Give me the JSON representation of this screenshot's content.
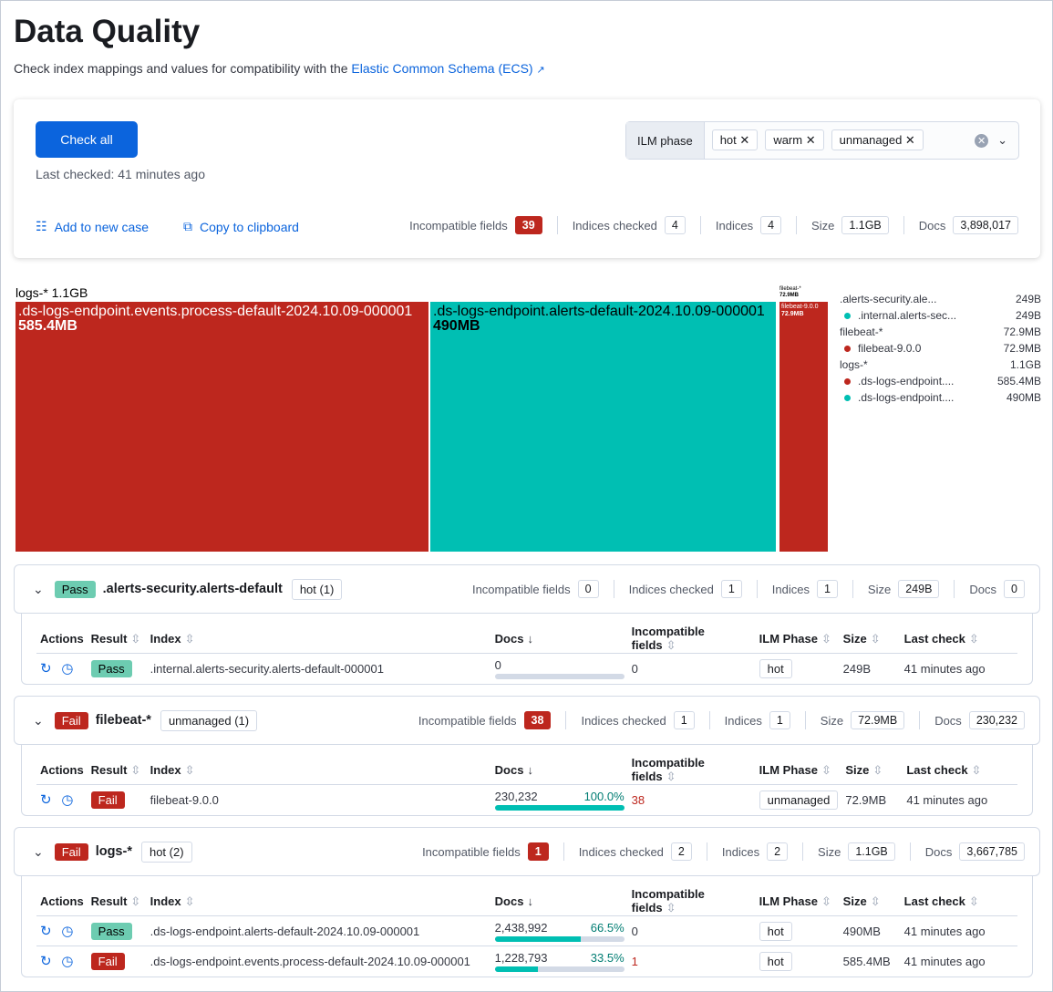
{
  "header": {
    "title": "Data Quality",
    "subtitle": "Check index mappings and values for compatibility with the",
    "link": "Elastic Common Schema (ECS)"
  },
  "panel": {
    "check_all": "Check all",
    "last_checked": "Last checked: 41 minutes ago",
    "add_case": "Add to new case",
    "copy": "Copy to clipboard",
    "ilm_label": "ILM phase",
    "ilm_chips": [
      "hot",
      "warm",
      "unmanaged"
    ],
    "stats": [
      {
        "label": "Incompatible fields",
        "value": "39",
        "alert": true
      },
      {
        "label": "Indices checked",
        "value": "4"
      },
      {
        "label": "Indices",
        "value": "4"
      },
      {
        "label": "Size",
        "value": "1.1GB"
      },
      {
        "label": "Docs",
        "value": "3,898,017"
      }
    ]
  },
  "colors": {
    "fail": "#bd271e",
    "pass": "#00bfb3",
    "link": "#0b64dd"
  },
  "treemap": {
    "title": "logs-* 1.1GB",
    "small_label": "filebeat-*",
    "small_size": "72.9MB",
    "rects": [
      {
        "name": ".ds-logs-endpoint.events.process-default-2024.10.09-000001",
        "size": "585.4MB",
        "color": "#bd271e"
      },
      {
        "name": ".ds-logs-endpoint.alerts-default-2024.10.09-000001",
        "size": "490MB",
        "color": "#00bfb3"
      },
      {
        "name": "filebeat-9.0.0",
        "size": "72.9MB",
        "color": "#bd271e"
      }
    ],
    "legend": [
      {
        "label": ".alerts-security.ale...",
        "value": "249B"
      },
      {
        "label": ".internal.alerts-sec...",
        "value": "249B",
        "color": "#00bfb3"
      },
      {
        "label": "filebeat-*",
        "value": "72.9MB"
      },
      {
        "label": "filebeat-9.0.0",
        "value": "72.9MB",
        "color": "#bd271e"
      },
      {
        "label": "logs-*",
        "value": "1.1GB"
      },
      {
        "label": ".ds-logs-endpoint....",
        "value": "585.4MB",
        "color": "#bd271e"
      },
      {
        "label": ".ds-logs-endpoint....",
        "value": "490MB",
        "color": "#00bfb3"
      }
    ]
  },
  "columns": [
    "Actions",
    "Result",
    "Index",
    "Docs",
    "Incompatible fields",
    "ILM Phase",
    "Size",
    "Last check"
  ],
  "groups": [
    {
      "result": "Pass",
      "pattern": ".alerts-security.alerts-default",
      "ilm": "hot (1)",
      "stats": [
        {
          "label": "Incompatible fields",
          "value": "0"
        },
        {
          "label": "Indices checked",
          "value": "1"
        },
        {
          "label": "Indices",
          "value": "1"
        },
        {
          "label": "Size",
          "value": "249B"
        },
        {
          "label": "Docs",
          "value": "0"
        }
      ],
      "rows": [
        {
          "result": "Pass",
          "index": ".internal.alerts-security.alerts-default-000001",
          "docs": "0",
          "pct": "",
          "pct_value": 0,
          "incompatible": "0",
          "ilm": "hot",
          "size": "249B",
          "last": "41 minutes ago"
        }
      ]
    },
    {
      "result": "Fail",
      "pattern": "filebeat-*",
      "ilm": "unmanaged (1)",
      "stats": [
        {
          "label": "Incompatible fields",
          "value": "38",
          "alert": true
        },
        {
          "label": "Indices checked",
          "value": "1"
        },
        {
          "label": "Indices",
          "value": "1"
        },
        {
          "label": "Size",
          "value": "72.9MB"
        },
        {
          "label": "Docs",
          "value": "230,232"
        }
      ],
      "rows": [
        {
          "result": "Fail",
          "index": "filebeat-9.0.0",
          "docs": "230,232",
          "pct": "100.0%",
          "pct_value": 100,
          "incompatible": "38",
          "ilm": "unmanaged",
          "size": "72.9MB",
          "last": "41 minutes ago"
        }
      ]
    },
    {
      "result": "Fail",
      "pattern": "logs-*",
      "ilm": "hot (2)",
      "stats": [
        {
          "label": "Incompatible fields",
          "value": "1",
          "alert": true
        },
        {
          "label": "Indices checked",
          "value": "2"
        },
        {
          "label": "Indices",
          "value": "2"
        },
        {
          "label": "Size",
          "value": "1.1GB"
        },
        {
          "label": "Docs",
          "value": "3,667,785"
        }
      ],
      "rows": [
        {
          "result": "Pass",
          "index": ".ds-logs-endpoint.alerts-default-2024.10.09-000001",
          "docs": "2,438,992",
          "pct": "66.5%",
          "pct_value": 66.5,
          "incompatible": "0",
          "ilm": "hot",
          "size": "490MB",
          "last": "41 minutes ago"
        },
        {
          "result": "Fail",
          "index": ".ds-logs-endpoint.events.process-default-2024.10.09-000001",
          "docs": "1,228,793",
          "pct": "33.5%",
          "pct_value": 33.5,
          "incompatible": "1",
          "ilm": "hot",
          "size": "585.4MB",
          "last": "41 minutes ago"
        }
      ]
    }
  ]
}
